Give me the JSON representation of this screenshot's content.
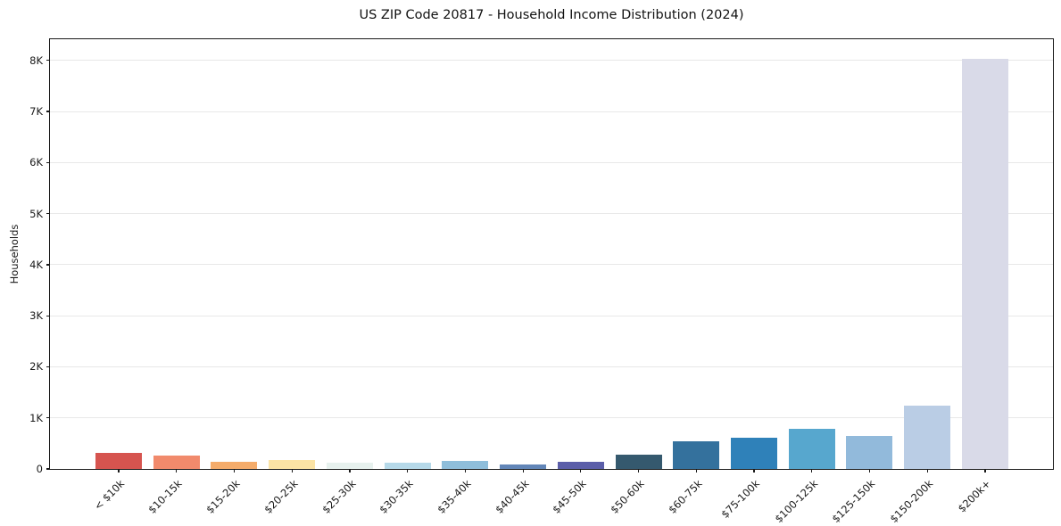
{
  "chart_data": {
    "type": "bar",
    "title": "US ZIP Code 20817 - Household Income Distribution (2024)",
    "xlabel": "",
    "ylabel": "Households",
    "categories": [
      "< $10k",
      "$10-15k",
      "$15-20k",
      "$20-25k",
      "$25-30k",
      "$30-35k",
      "$35-40k",
      "$40-45k",
      "$45-50k",
      "$50-60k",
      "$60-75k",
      "$75-100k",
      "$100-125k",
      "$125-150k",
      "$150-200k",
      "$200k+"
    ],
    "values": [
      310,
      270,
      140,
      170,
      130,
      115,
      160,
      95,
      135,
      275,
      550,
      620,
      790,
      650,
      1240,
      8030
    ],
    "bar_colors": [
      "#d6544f",
      "#f18a6c",
      "#f5ac6b",
      "#fbe3a5",
      "#e7f1ee",
      "#b6d9e9",
      "#8fbedb",
      "#6286b8",
      "#5b5ea9",
      "#35596e",
      "#34719d",
      "#2f81b9",
      "#57a7ce",
      "#92badb",
      "#bacde5",
      "#d9dae8"
    ],
    "ylim": [
      0,
      8450
    ],
    "yticks": [
      0,
      1000,
      2000,
      3000,
      4000,
      5000,
      6000,
      7000,
      8000
    ],
    "ytick_labels": [
      "0",
      "1K",
      "2K",
      "3K",
      "4K",
      "5K",
      "6K",
      "7K",
      "8K"
    ],
    "grid": "horizontal",
    "grid_color": "#e8e8e8",
    "legend": "none",
    "background_color": "#ffffff"
  }
}
